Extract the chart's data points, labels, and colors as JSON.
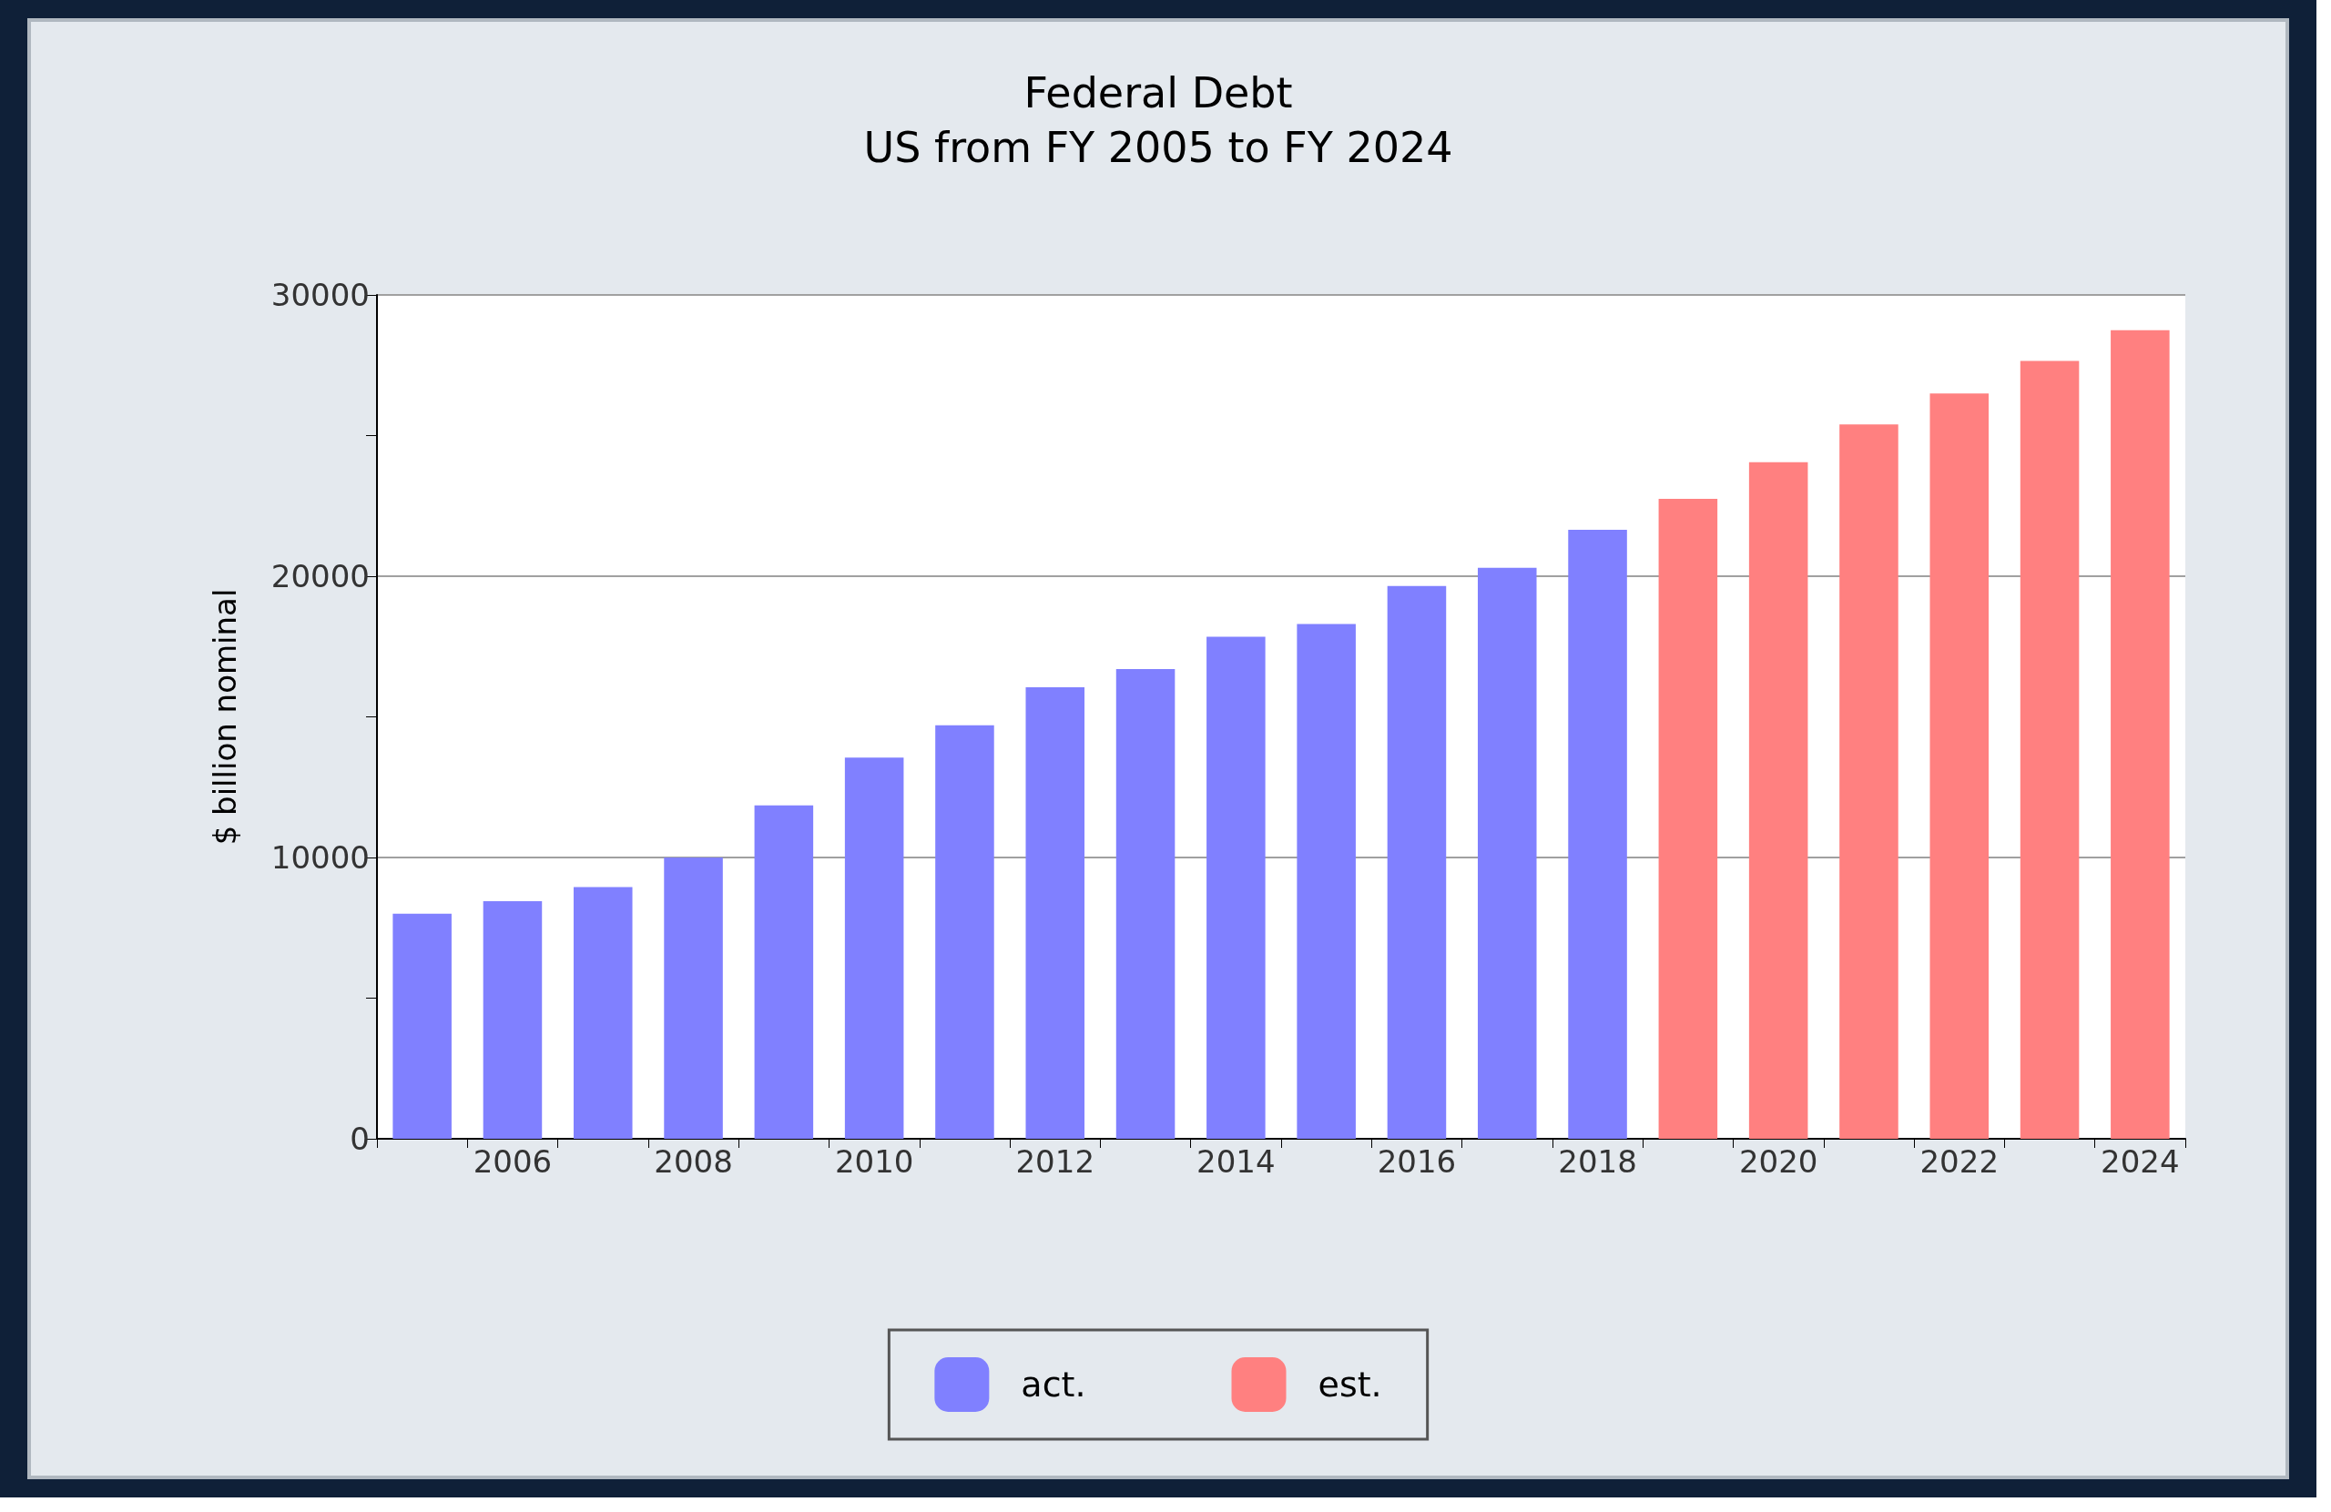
{
  "chart_data": {
    "type": "bar",
    "title": "Federal Debt",
    "subtitle": "US from FY 2005 to FY 2024",
    "ylabel": "$ billion nominal",
    "categories": [
      null,
      "2006",
      null,
      "2008",
      null,
      "2010",
      null,
      "2012",
      null,
      "2014",
      null,
      "2016",
      null,
      "2018",
      null,
      "2020",
      null,
      "2022",
      null,
      "2024"
    ],
    "series": [
      {
        "name": "act.",
        "color": "#8080ff",
        "values": [
          8000,
          8450,
          8950,
          10000,
          11850,
          13550,
          14700,
          16050,
          16700,
          17850,
          18300,
          19650,
          20300,
          21650,
          null,
          null,
          null,
          null,
          null,
          null
        ]
      },
      {
        "name": "est.",
        "color": "#ff8080",
        "values": [
          null,
          null,
          null,
          null,
          null,
          null,
          null,
          null,
          null,
          null,
          null,
          null,
          null,
          null,
          22750,
          24050,
          25400,
          26500,
          27650,
          28750
        ]
      }
    ],
    "ylim": [
      0,
      30000
    ],
    "yticks": [
      0,
      {
        "value": 5000,
        "label": null
      },
      10000,
      {
        "value": 15000,
        "label": null
      },
      20000,
      {
        "value": 25000,
        "label": null
      },
      30000
    ],
    "grid": "y",
    "legend": "bottom"
  }
}
